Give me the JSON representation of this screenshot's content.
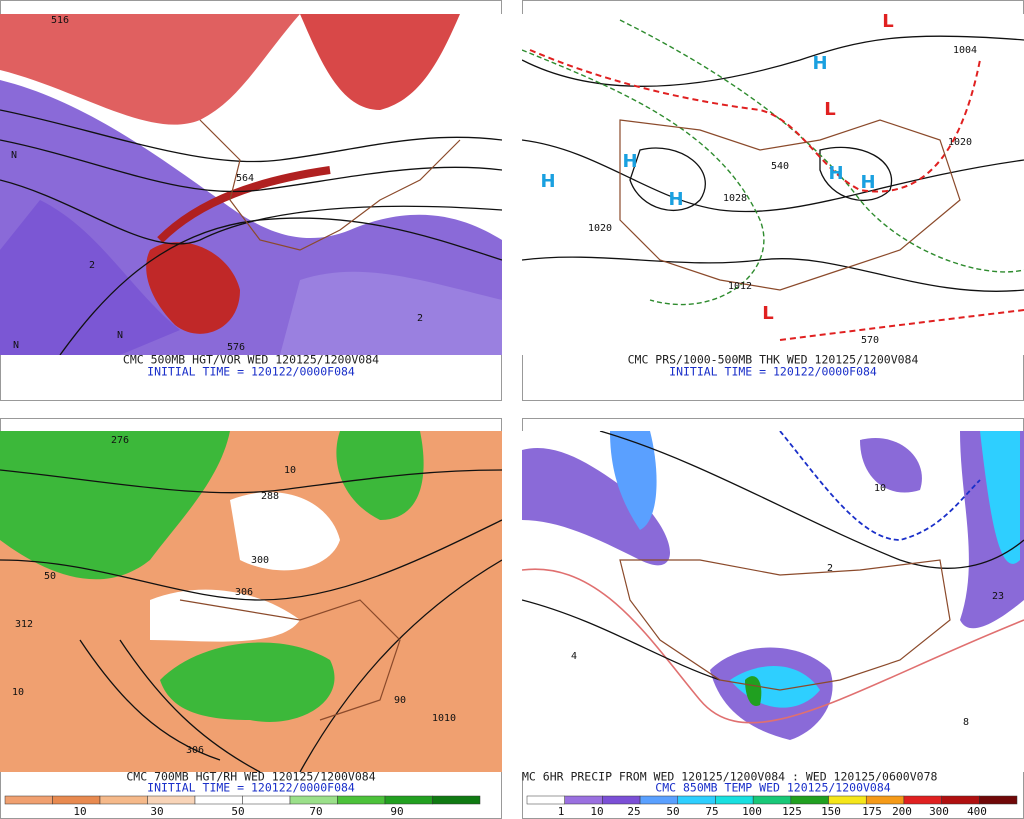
{
  "panels": [
    {
      "caption": "CMC 500MB HGT/VOR WED 120125/1200V084",
      "subcaption": "INITIAL TIME = 120122/0000F084",
      "labels": [
        "516",
        "564",
        "576",
        "N",
        "N",
        "N",
        "2",
        "2"
      ]
    },
    {
      "caption": "CMC PRS/1000-500MB THK WED 120125/1200V084",
      "subcaption": "INITIAL TIME = 120122/0000F084",
      "labels": [
        "H",
        "H",
        "H",
        "H",
        "H",
        "H",
        "L",
        "L",
        "L",
        "1020",
        "1028",
        "1012",
        "1004",
        "1020",
        "540",
        "570"
      ]
    },
    {
      "caption": "CMC 700MB HGT/RH WED 120125/1200V084",
      "subcaption": "INITIAL TIME = 120122/0000F084",
      "labels": [
        "276",
        "288",
        "300",
        "306",
        "312",
        "306",
        "10",
        "50",
        "90",
        "10",
        "1010"
      ],
      "colorbar": {
        "labels": [
          10,
          30,
          50,
          70,
          90
        ],
        "colors": [
          "#f0a070",
          "#e88a50",
          "#f5b98a",
          "#f8d4b8",
          "#ffffff",
          "#ffffff",
          "#9be08a",
          "#4cc23a",
          "#22a020",
          "#0f7a12"
        ]
      }
    },
    {
      "caption": "MC 6HR PRECIP FROM WED 120125/1200V084 : WED 120125/0600V078",
      "subcaption": "CMC 850MB TEMP WED 120125/1200V084",
      "labels": [
        "10",
        "2",
        "23",
        "8",
        "4"
      ],
      "colorbar": {
        "labels": [
          1,
          10,
          25,
          50,
          75,
          100,
          125,
          150,
          175,
          200,
          300,
          400
        ],
        "colors": [
          "#ffffff",
          "#9a70e0",
          "#7b4fd6",
          "#5aa0ff",
          "#2ecfff",
          "#18e0e0",
          "#18c878",
          "#20a020",
          "#f5e61a",
          "#f59a18",
          "#e02020",
          "#b01010",
          "#700808"
        ]
      }
    }
  ]
}
